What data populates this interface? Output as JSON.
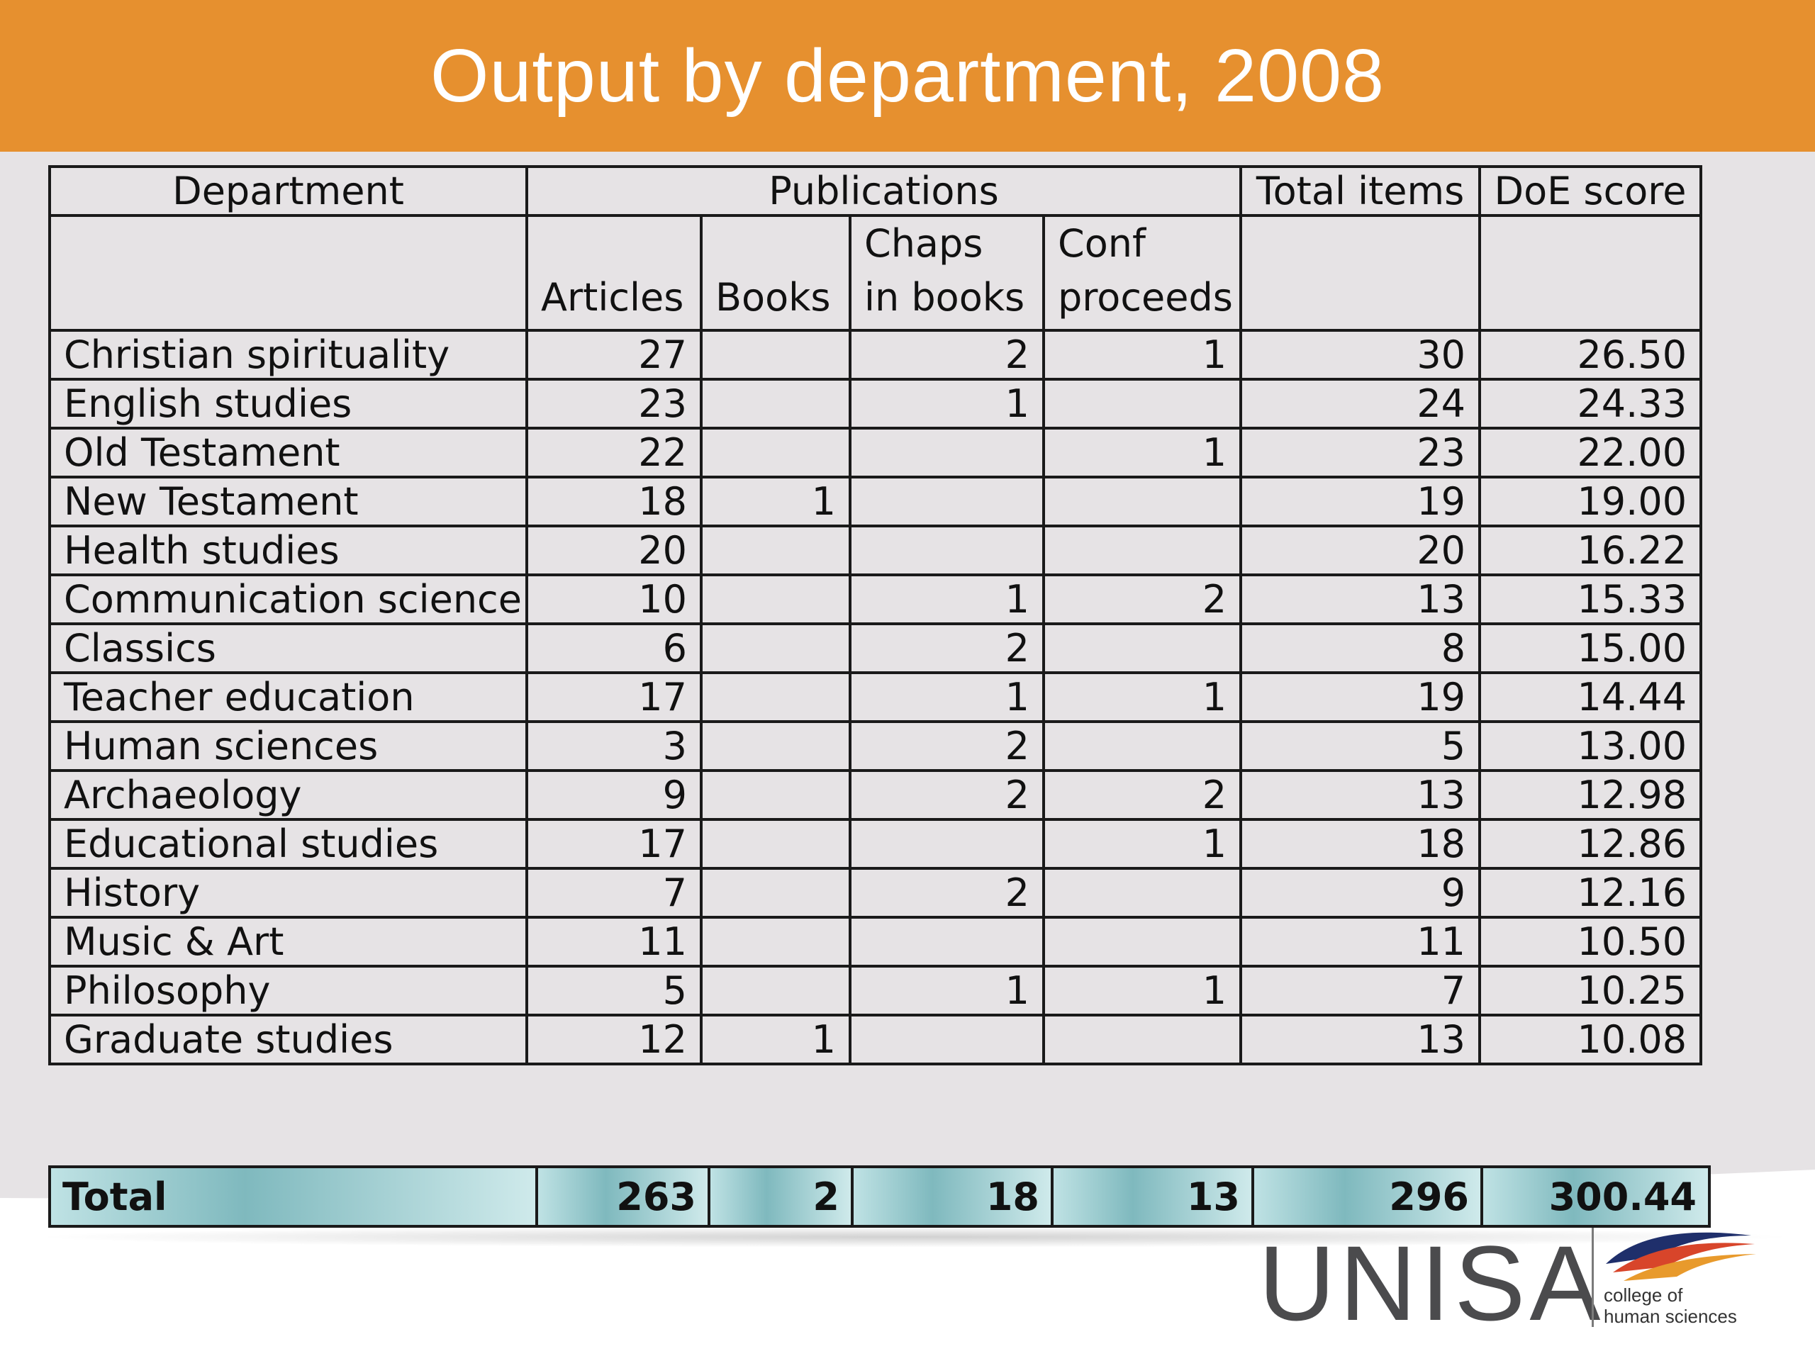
{
  "title": "Output by department, 2008",
  "colors": {
    "title_bar": "#e6902f",
    "total_row": "#9ccfd3"
  },
  "headers": {
    "department": "Department",
    "publications": "Publications",
    "total_items": "Total items",
    "doe_score": "DoE score",
    "articles": "Articles",
    "books": "Books",
    "chaps_in_books": "Chaps in books",
    "conf_proceeds": "Conf proceeds"
  },
  "rows": [
    {
      "department": "Christian spirituality",
      "articles": "27",
      "books": "",
      "chaps": "2",
      "conf": "1",
      "total": "30",
      "score": "26.50"
    },
    {
      "department": "English studies",
      "articles": "23",
      "books": "",
      "chaps": "1",
      "conf": "",
      "total": "24",
      "score": "24.33"
    },
    {
      "department": "Old Testament",
      "articles": "22",
      "books": "",
      "chaps": "",
      "conf": "1",
      "total": "23",
      "score": "22.00"
    },
    {
      "department": "New Testament",
      "articles": "18",
      "books": "1",
      "chaps": "",
      "conf": "",
      "total": "19",
      "score": "19.00"
    },
    {
      "department": "Health studies",
      "articles": "20",
      "books": "",
      "chaps": "",
      "conf": "",
      "total": "20",
      "score": "16.22"
    },
    {
      "department": "Communication science",
      "articles": "10",
      "books": "",
      "chaps": "1",
      "conf": "2",
      "total": "13",
      "score": "15.33"
    },
    {
      "department": "Classics",
      "articles": "6",
      "books": "",
      "chaps": "2",
      "conf": "",
      "total": "8",
      "score": "15.00"
    },
    {
      "department": "Teacher education",
      "articles": "17",
      "books": "",
      "chaps": "1",
      "conf": "1",
      "total": "19",
      "score": "14.44"
    },
    {
      "department": "Human sciences",
      "articles": "3",
      "books": "",
      "chaps": "2",
      "conf": "",
      "total": "5",
      "score": "13.00"
    },
    {
      "department": "Archaeology",
      "articles": "9",
      "books": "",
      "chaps": "2",
      "conf": "2",
      "total": "13",
      "score": "12.98"
    },
    {
      "department": "Educational studies",
      "articles": "17",
      "books": "",
      "chaps": "",
      "conf": "1",
      "total": "18",
      "score": "12.86"
    },
    {
      "department": "History",
      "articles": "7",
      "books": "",
      "chaps": "2",
      "conf": "",
      "total": "9",
      "score": "12.16"
    },
    {
      "department": "Music & Art",
      "articles": "11",
      "books": "",
      "chaps": "",
      "conf": "",
      "total": "11",
      "score": "10.50"
    },
    {
      "department": "Philosophy",
      "articles": "5",
      "books": "",
      "chaps": "1",
      "conf": "1",
      "total": "7",
      "score": "10.25"
    },
    {
      "department": "Graduate studies",
      "articles": "12",
      "books": "1",
      "chaps": "",
      "conf": "",
      "total": "13",
      "score": "10.08"
    }
  ],
  "total_row": {
    "label": "Total",
    "articles": "263",
    "books": "2",
    "chaps": "18",
    "conf": "13",
    "total": "296",
    "score": "300.44"
  },
  "logo": {
    "wordmark": "UNISA",
    "subtitle_line1": "college of",
    "subtitle_line2": "human sciences"
  }
}
